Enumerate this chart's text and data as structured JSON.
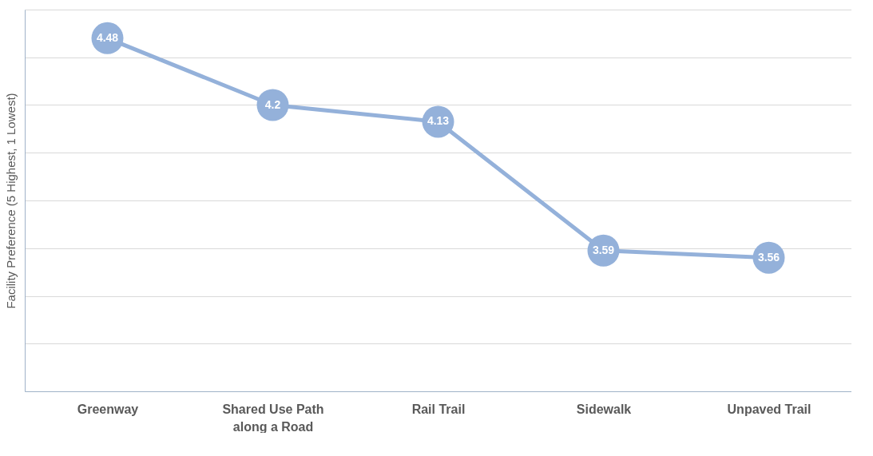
{
  "chart_data": {
    "type": "line",
    "ylabel": "Facility Preference (5 Highest, 1 Lowest)",
    "categories": [
      "Greenway",
      "Shared Use Path along a Road",
      "Rail Trail",
      "Sidewalk",
      "Unpaved Trail"
    ],
    "series": [
      {
        "color": "#94b1da",
        "values": [
          4.48,
          4.2,
          4.13,
          3.59,
          3.56
        ]
      }
    ],
    "ylim": [
      3.0,
      4.6
    ],
    "yticks": [
      {
        "value": 3.0,
        "label": null
      },
      {
        "value": 3.2,
        "label": null
      },
      {
        "value": 3.4,
        "label": null
      },
      {
        "value": 3.6,
        "label": null
      },
      {
        "value": 3.8,
        "label": null
      },
      {
        "value": 4.0,
        "label": null
      },
      {
        "value": 4.2,
        "label": null
      },
      {
        "value": 4.4,
        "label": null
      },
      {
        "value": 4.6,
        "label": null
      }
    ],
    "tick_labels": "x",
    "grid": "y",
    "marker": "circle",
    "line_style": "solid",
    "data_labels": true
  }
}
